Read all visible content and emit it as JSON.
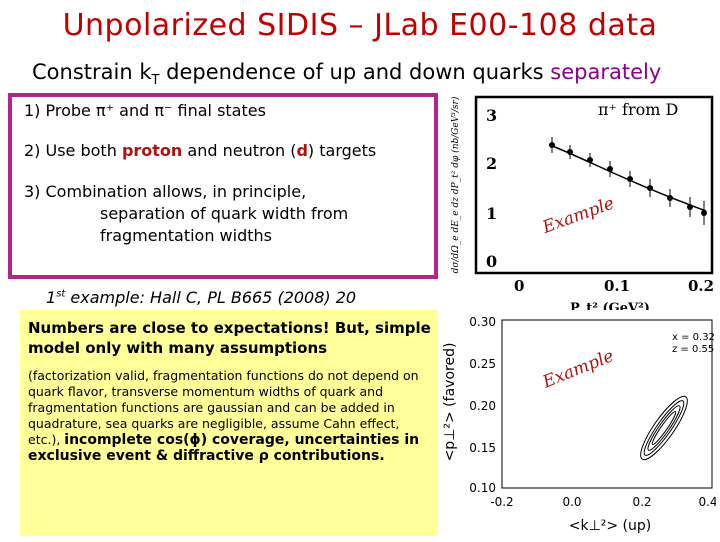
{
  "title": "Unpolarized SIDIS – JLab E00-108 data",
  "subtitle": {
    "prefix": "Constrain k",
    "sub": "T",
    "middle": " dependence of up and down quarks ",
    "highlight": "separately"
  },
  "points": {
    "p1": {
      "prefix": "1) Probe ",
      "pi_plus": "π⁺",
      "and": " and ",
      "pi_minus": "π⁻",
      "suffix": " final states"
    },
    "p2": {
      "prefix": "2) Use both ",
      "proton": "proton",
      "middle": " and neutron (",
      "d": "d",
      "suffix": ") targets"
    },
    "p3": {
      "line1": "3) Combination allows, in principle,",
      "line2": "separation of quark width from",
      "line3": "fragmentation widths"
    }
  },
  "plot1": {
    "label": "π⁺ from D",
    "y_label": "dσ/dΩ_e dE_e dz dP_t² dφ (nb/GeV³/sr)",
    "y_ticks": [
      "3",
      "2",
      "1",
      "0"
    ],
    "x_ticks": [
      "0",
      "0.1",
      "0.2"
    ],
    "x_label": "P_t² (GeV²)",
    "watermark": "Example"
  },
  "example1": {
    "num": "1",
    "sup": "st",
    "text": " example: Hall C, PL B665 (2008) 20"
  },
  "note": {
    "bold_intro": "Numbers are close to expectations! But, simple model only with many assumptions",
    "details": "(factorization valid, fragmentation functions do not depend on quark flavor, transverse momentum widths of quark and fragmentation functions are gaussian and can be added  in quadrature, sea quarks are negligible, assume Cahn effect, etc.), ",
    "bold_end": "incomplete cos(ϕ) coverage, uncertainties in exclusive event & diffractive ρ contributions."
  },
  "plot2": {
    "y_ticks": [
      "0.30",
      "0.25",
      "0.20",
      "0.15",
      "0.10"
    ],
    "x_ticks": [
      "-0.2",
      "0.0",
      "0.2",
      "0.4"
    ],
    "y_label": "<p⊥²> (favored)",
    "x_label": "<k⊥²> (up)",
    "legend1": "x = 0.32",
    "legend2": "z = 0.55",
    "watermark": "Example"
  },
  "colors": {
    "title": "#c00000",
    "box_border": "#b0248c",
    "highlight": "#8b008b",
    "note_bg": "#ffff99"
  }
}
